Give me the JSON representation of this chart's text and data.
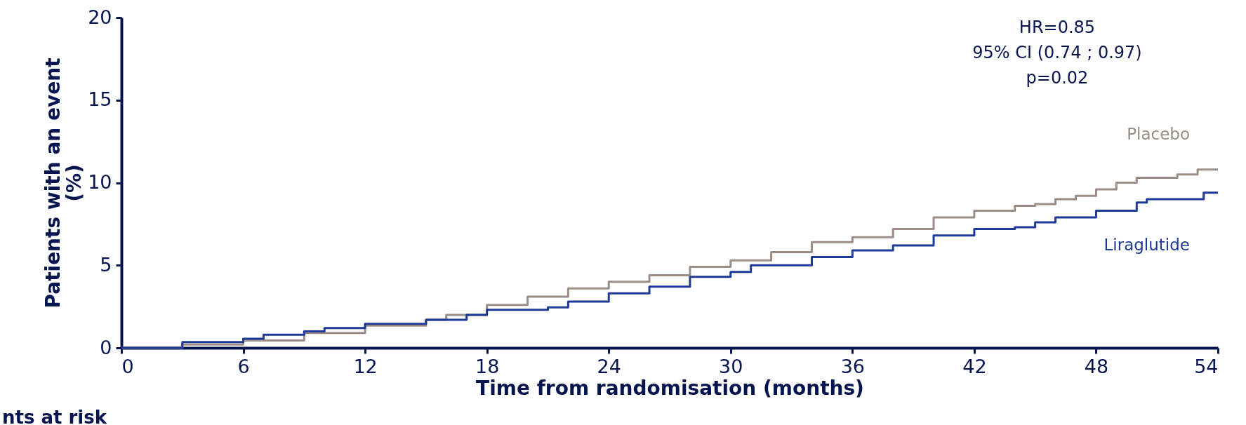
{
  "chart_data": {
    "type": "step",
    "xlabel": "Time from randomisation (months)",
    "ylabel": "Patients with an event (%)",
    "xlim": [
      0,
      54
    ],
    "xticks": [
      0,
      6,
      12,
      18,
      24,
      30,
      36,
      42,
      48,
      54
    ],
    "ylim": [
      0,
      20
    ],
    "yticks": [
      0,
      5,
      10,
      15,
      20
    ],
    "grid": false,
    "series": [
      {
        "name": "Placebo",
        "color": "#9a8d86",
        "x": [
          0,
          3,
          6,
          9,
          12,
          15,
          16,
          18,
          20,
          22,
          24,
          26,
          28,
          30,
          32,
          34,
          36,
          38,
          40,
          42,
          44,
          45,
          46,
          47,
          48,
          49,
          50,
          52,
          53,
          54
        ],
        "values": [
          0,
          0.2,
          0.45,
          0.9,
          1.35,
          1.7,
          2.0,
          2.6,
          3.1,
          3.6,
          4.0,
          4.4,
          4.9,
          5.3,
          5.8,
          6.4,
          6.7,
          7.2,
          7.9,
          8.3,
          8.6,
          8.7,
          9.0,
          9.2,
          9.6,
          10.0,
          10.3,
          10.5,
          10.8,
          10.8
        ]
      },
      {
        "name": "Liraglutide",
        "color": "#1f3a96",
        "x": [
          0,
          3,
          6,
          7,
          9,
          10,
          12,
          15,
          17,
          18,
          21,
          22,
          24,
          26,
          28,
          30,
          31,
          34,
          36,
          38,
          40,
          42,
          44,
          45,
          46,
          48,
          50,
          50.5,
          53,
          53.3,
          54
        ],
        "values": [
          0,
          0.35,
          0.55,
          0.8,
          1.0,
          1.2,
          1.45,
          1.7,
          2.0,
          2.3,
          2.45,
          2.8,
          3.3,
          3.7,
          4.3,
          4.6,
          5.0,
          5.5,
          5.9,
          6.2,
          6.8,
          7.2,
          7.3,
          7.6,
          7.9,
          8.3,
          8.8,
          9.0,
          9.0,
          9.4,
          9.4
        ]
      }
    ],
    "annotations": [
      "HR=0.85",
      "95% CI (0.74 ; 0.97)",
      "p=0.02",
      "nts at risk"
    ]
  }
}
